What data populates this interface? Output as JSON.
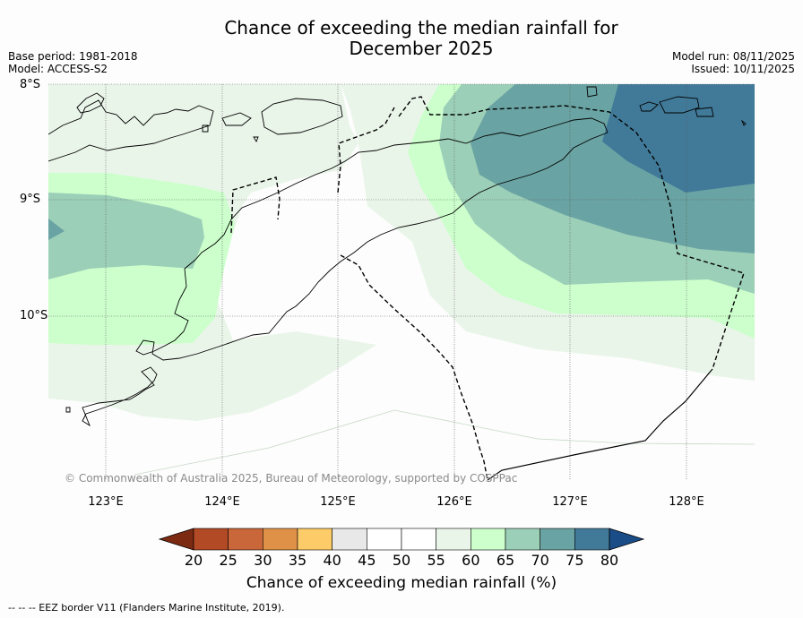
{
  "title": {
    "line1": "Chance of exceeding the median rainfall for",
    "line2": "December 2025"
  },
  "meta_left": {
    "base_period": "Base period: 1981-2018",
    "model": "Model: ACCESS-S2"
  },
  "meta_right": {
    "model_run": "Model run: 08/11/2025",
    "issued": "Issued: 10/11/2025"
  },
  "map": {
    "lat_labels": [
      "8°S",
      "9°S",
      "10°S"
    ],
    "lon_labels": [
      "123°E",
      "124°E",
      "125°E",
      "126°E",
      "127°E",
      "128°E"
    ],
    "copyright": "© Commonwealth of Australia 2025, Bureau of Meteorology, supported by COSPPac"
  },
  "colorbar": {
    "title": "Chance of exceeding median rainfall (%)",
    "ticks": [
      "20",
      "25",
      "30",
      "35",
      "40",
      "45",
      "50",
      "55",
      "60",
      "65",
      "70",
      "75",
      "80"
    ],
    "colors": [
      "#7d2a12",
      "#b24a25",
      "#c9663a",
      "#e09148",
      "#fdcb68",
      "#e8e8e8",
      "#ffffff",
      "#ffffff",
      "#eaf5ea",
      "#ccffcc",
      "#9ccfb8",
      "#6aa3a3",
      "#417a99",
      "#1a4d88"
    ]
  },
  "footnote": "--  --  -- EEZ border V11 (Flanders Marine Institute, 2019)."
}
